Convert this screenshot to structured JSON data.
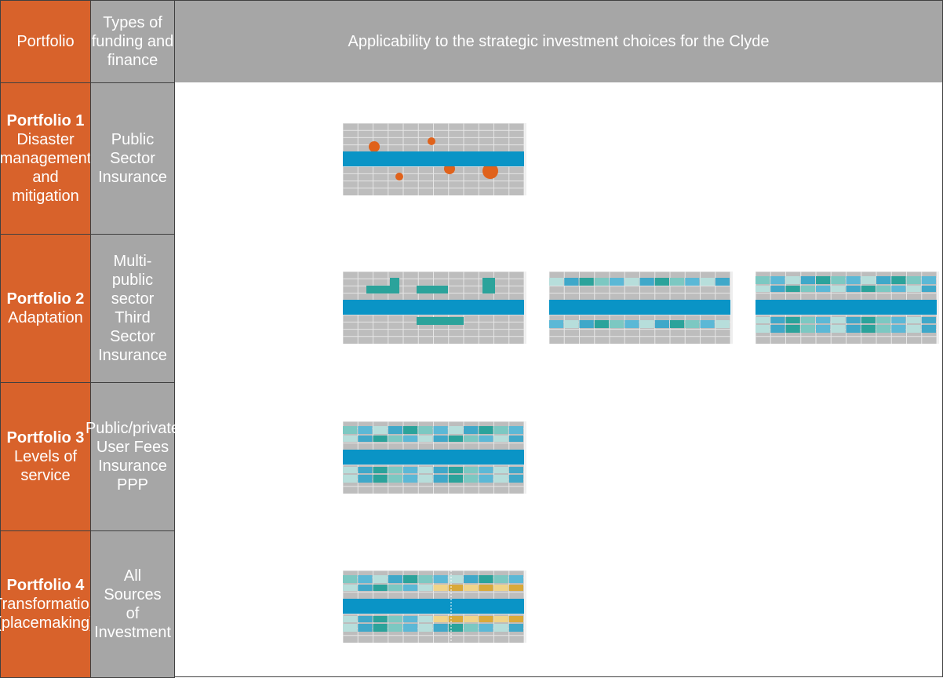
{
  "header": [
    "Portfolio",
    "Types of funding and finance",
    "Applicability to the strategic investment choices for the Clyde"
  ],
  "rows": [
    {
      "portfolio": "Portfolio 1",
      "description": "Disaster management and mitigation",
      "funding": [
        "Public Sector",
        "Insurance"
      ]
    },
    {
      "portfolio": "Portfolio 2",
      "description": "Adaptation",
      "funding": [
        "Multi-public sector",
        "Third Sector",
        "Insurance"
      ]
    },
    {
      "portfolio": "Portfolio 3",
      "description": "Levels of service",
      "funding": [
        "Public/private",
        "User Fees",
        "Insurance",
        "PPP"
      ]
    },
    {
      "portfolio": "Portfolio 4",
      "description": "Transformation (placemaking)",
      "funding": [
        "All Sources",
        "of Investment"
      ]
    }
  ]
}
